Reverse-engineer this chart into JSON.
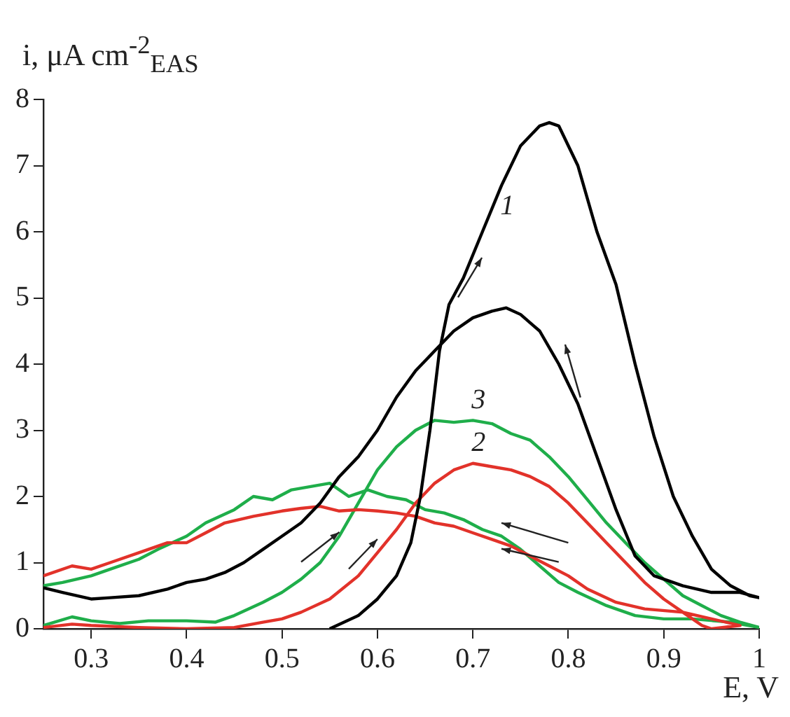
{
  "chart_data": {
    "type": "line",
    "xlabel": "E, V",
    "ylabel": "i, μA cm$^{-2}$$_{EAS}$",
    "xlim": [
      0.25,
      1.0
    ],
    "xticks": [
      0.3,
      0.4,
      0.5,
      0.6,
      0.7,
      0.8,
      0.9,
      1.0
    ],
    "ylim": [
      0,
      8
    ],
    "yticks": [
      0,
      1,
      2,
      3,
      4,
      5,
      6,
      7,
      8
    ],
    "grid": false,
    "legend": false,
    "marker": "none",
    "line_style": "solid",
    "series": [
      {
        "name": "1",
        "color": "#000000",
        "x": [
          0.55,
          0.58,
          0.6,
          0.62,
          0.635,
          0.645,
          0.655,
          0.665,
          0.675,
          0.69,
          0.71,
          0.73,
          0.75,
          0.77,
          0.78,
          0.79,
          0.81,
          0.83,
          0.85,
          0.87,
          0.89,
          0.91,
          0.93,
          0.95,
          0.97,
          0.99,
          1.0,
          0.98,
          0.95,
          0.92,
          0.89,
          0.87,
          0.85,
          0.83,
          0.81,
          0.79,
          0.77,
          0.75,
          0.735,
          0.72,
          0.7,
          0.68,
          0.66,
          0.64,
          0.62,
          0.6,
          0.58,
          0.56,
          0.54,
          0.52,
          0.5,
          0.48,
          0.46,
          0.44,
          0.42,
          0.4,
          0.38,
          0.35,
          0.32,
          0.3,
          0.27,
          0.25
        ],
        "values": [
          0,
          0.2,
          0.45,
          0.8,
          1.3,
          2.0,
          3.0,
          4.2,
          4.9,
          5.3,
          6.0,
          6.7,
          7.3,
          7.6,
          7.65,
          7.6,
          7.0,
          6.0,
          5.2,
          4.0,
          2.9,
          2.0,
          1.4,
          0.9,
          0.65,
          0.5,
          0.47,
          0.55,
          0.55,
          0.65,
          0.8,
          1.1,
          1.8,
          2.6,
          3.4,
          4.0,
          4.5,
          4.75,
          4.85,
          4.8,
          4.7,
          4.5,
          4.2,
          3.9,
          3.5,
          3.0,
          2.6,
          2.3,
          1.9,
          1.6,
          1.4,
          1.2,
          1.0,
          0.85,
          0.75,
          0.7,
          0.6,
          0.5,
          0.47,
          0.45,
          0.55,
          0.62
        ]
      },
      {
        "name": "2",
        "color": "#e2322a",
        "x": [
          0.25,
          0.28,
          0.3,
          0.35,
          0.4,
          0.45,
          0.48,
          0.5,
          0.52,
          0.55,
          0.58,
          0.6,
          0.62,
          0.64,
          0.66,
          0.68,
          0.7,
          0.72,
          0.74,
          0.76,
          0.78,
          0.8,
          0.82,
          0.84,
          0.86,
          0.88,
          0.9,
          0.92,
          0.94,
          0.95,
          0.98,
          0.95,
          0.92,
          0.88,
          0.85,
          0.82,
          0.8,
          0.78,
          0.76,
          0.74,
          0.72,
          0.7,
          0.68,
          0.66,
          0.64,
          0.62,
          0.6,
          0.58,
          0.56,
          0.54,
          0.52,
          0.5,
          0.47,
          0.44,
          0.42,
          0.4,
          0.38,
          0.35,
          0.32,
          0.3,
          0.28,
          0.25
        ],
        "values": [
          0.02,
          0.07,
          0.05,
          0.02,
          0,
          0.02,
          0.1,
          0.15,
          0.25,
          0.45,
          0.8,
          1.15,
          1.5,
          1.9,
          2.2,
          2.4,
          2.5,
          2.45,
          2.4,
          2.3,
          2.15,
          1.9,
          1.6,
          1.3,
          1.0,
          0.7,
          0.45,
          0.25,
          0.05,
          0,
          0.05,
          0.15,
          0.25,
          0.3,
          0.4,
          0.6,
          0.8,
          0.95,
          1.1,
          1.25,
          1.35,
          1.45,
          1.55,
          1.6,
          1.7,
          1.75,
          1.78,
          1.8,
          1.78,
          1.85,
          1.82,
          1.78,
          1.7,
          1.6,
          1.45,
          1.3,
          1.3,
          1.15,
          1.0,
          0.9,
          0.95,
          0.8
        ]
      },
      {
        "name": "3",
        "color": "#1fae4a",
        "x": [
          0.25,
          0.28,
          0.3,
          0.33,
          0.36,
          0.4,
          0.43,
          0.45,
          0.48,
          0.5,
          0.52,
          0.54,
          0.56,
          0.58,
          0.6,
          0.62,
          0.64,
          0.66,
          0.68,
          0.7,
          0.72,
          0.74,
          0.76,
          0.78,
          0.8,
          0.82,
          0.84,
          0.86,
          0.88,
          0.9,
          0.92,
          0.94,
          0.96,
          0.98,
          1.0,
          0.97,
          0.93,
          0.9,
          0.87,
          0.84,
          0.81,
          0.79,
          0.77,
          0.75,
          0.73,
          0.71,
          0.69,
          0.67,
          0.65,
          0.63,
          0.61,
          0.59,
          0.57,
          0.55,
          0.53,
          0.51,
          0.49,
          0.47,
          0.45,
          0.42,
          0.4,
          0.37,
          0.35,
          0.32,
          0.3,
          0.27,
          0.25
        ],
        "values": [
          0.05,
          0.18,
          0.12,
          0.08,
          0.12,
          0.12,
          0.1,
          0.2,
          0.4,
          0.55,
          0.75,
          1.0,
          1.4,
          1.9,
          2.4,
          2.75,
          3.0,
          3.15,
          3.12,
          3.15,
          3.1,
          2.95,
          2.85,
          2.6,
          2.3,
          1.95,
          1.6,
          1.3,
          1.0,
          0.75,
          0.5,
          0.35,
          0.2,
          0.1,
          0.02,
          0.1,
          0.15,
          0.15,
          0.2,
          0.35,
          0.55,
          0.7,
          0.95,
          1.2,
          1.4,
          1.5,
          1.65,
          1.75,
          1.8,
          1.95,
          2.0,
          2.1,
          2.0,
          2.2,
          2.15,
          2.1,
          1.95,
          2.0,
          1.8,
          1.6,
          1.4,
          1.2,
          1.05,
          0.9,
          0.8,
          0.7,
          0.65
        ]
      }
    ]
  }
}
